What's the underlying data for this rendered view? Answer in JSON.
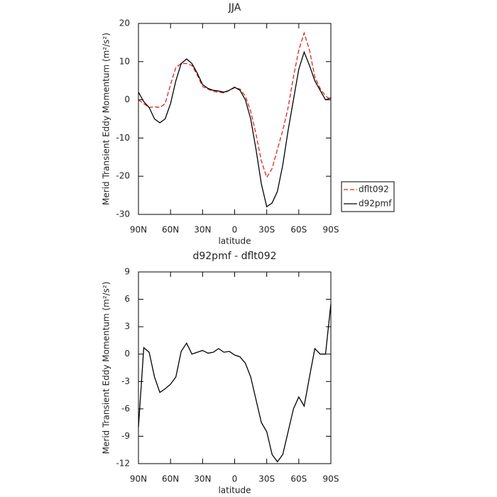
{
  "chart_data": [
    {
      "type": "line",
      "title": "JJA",
      "xlabel": "latitude",
      "ylabel": "Merid Transient Eddy Momentum (m²/s²)",
      "x": [
        90,
        85,
        80,
        75,
        70,
        65,
        60,
        55,
        50,
        45,
        40,
        35,
        30,
        25,
        20,
        15,
        10,
        5,
        0,
        -5,
        -10,
        -15,
        -20,
        -25,
        -30,
        -35,
        -40,
        -45,
        -50,
        -55,
        -60,
        -65,
        -70,
        -75,
        -80,
        -85,
        -90
      ],
      "xlim": [
        90,
        -90
      ],
      "xticks": [
        {
          "value": 90,
          "label": "90N"
        },
        {
          "value": 60,
          "label": "60N"
        },
        {
          "value": 30,
          "label": "30N"
        },
        0,
        {
          "value": -30,
          "label": "30S"
        },
        {
          "value": -60,
          "label": "60S"
        },
        {
          "value": -90,
          "label": "90S"
        }
      ],
      "ylim": [
        -30,
        20
      ],
      "yticks": [
        -30,
        -20,
        -10,
        0,
        10,
        20
      ],
      "legend": "right",
      "series": [
        {
          "name": "dflt092",
          "color": "#e02020",
          "dash": true,
          "values": [
            0,
            -1,
            -2,
            -1.8,
            -2,
            -1,
            4,
            8.5,
            9.5,
            9.5,
            9,
            6.5,
            3.5,
            2.8,
            2.2,
            2,
            1.8,
            2.5,
            3.2,
            2.8,
            1,
            -3,
            -9,
            -16,
            -20.3,
            -18,
            -13,
            -8,
            -2,
            6,
            13,
            17.5,
            13,
            6,
            3,
            1,
            0
          ]
        },
        {
          "name": "d92pmf",
          "color": "#000000",
          "dash": false,
          "values": [
            2,
            -0.5,
            -2,
            -5,
            -6,
            -5,
            -1,
            5,
            9.5,
            10.7,
            9.5,
            7,
            4,
            3,
            2.5,
            2.3,
            2,
            2.5,
            3.3,
            2.5,
            0,
            -5,
            -13,
            -22,
            -28,
            -27,
            -24,
            -17,
            -8,
            0,
            8,
            12.5,
            9,
            5,
            2.5,
            0,
            0.5
          ]
        }
      ]
    },
    {
      "type": "line",
      "title": "d92pmf - dflt092",
      "xlabel": "latitude",
      "ylabel": "Merid Transient Eddy Momentum (m²/s²)",
      "x": [
        90,
        85,
        80,
        75,
        70,
        65,
        60,
        55,
        50,
        45,
        40,
        35,
        30,
        25,
        20,
        15,
        10,
        5,
        0,
        -5,
        -10,
        -15,
        -20,
        -25,
        -30,
        -35,
        -40,
        -45,
        -50,
        -55,
        -60,
        -65,
        -70,
        -75,
        -80,
        -85,
        -90
      ],
      "xlim": [
        90,
        -90
      ],
      "xticks": [
        {
          "value": 90,
          "label": "90N"
        },
        {
          "value": 60,
          "label": "60N"
        },
        {
          "value": 30,
          "label": "30N"
        },
        0,
        {
          "value": -30,
          "label": "30S"
        },
        {
          "value": -60,
          "label": "60S"
        },
        {
          "value": -90,
          "label": "90S"
        }
      ],
      "ylim": [
        -12,
        9
      ],
      "yticks": [
        -12,
        -9,
        -6,
        -3,
        0,
        3,
        6,
        9
      ],
      "series": [
        {
          "color": "#000000",
          "dash": false,
          "values": [
            -8,
            0.7,
            0.2,
            -2.5,
            -4.2,
            -3.8,
            -3.3,
            -2.5,
            0.3,
            1.2,
            0,
            0.2,
            0.4,
            0.1,
            0.2,
            0.6,
            0.2,
            0.3,
            -0.1,
            -0.3,
            -1,
            -2.5,
            -5,
            -7.5,
            -8.5,
            -11,
            -11.8,
            -11,
            -8.5,
            -6,
            -4.7,
            -5.7,
            -2.5,
            0.6,
            0,
            0,
            5.5
          ]
        }
      ]
    }
  ]
}
